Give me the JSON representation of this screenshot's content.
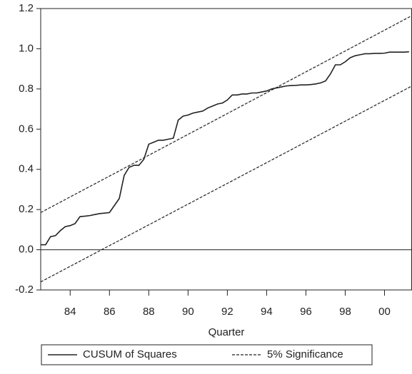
{
  "chart_data": {
    "type": "line",
    "xlabel": "Quarter",
    "xlim": [
      1982.5,
      2001.4
    ],
    "xticks": [
      {
        "value": 1984,
        "label": "84"
      },
      {
        "value": 1986,
        "label": "86"
      },
      {
        "value": 1988,
        "label": "88"
      },
      {
        "value": 1990,
        "label": "90"
      },
      {
        "value": 1992,
        "label": "92"
      },
      {
        "value": 1994,
        "label": "94"
      },
      {
        "value": 1996,
        "label": "96"
      },
      {
        "value": 1998,
        "label": "98"
      },
      {
        "value": 2000,
        "label": "00"
      }
    ],
    "ylim": [
      -0.2,
      1.2
    ],
    "yticks": [
      {
        "value": -0.2,
        "label": "-0.2"
      },
      {
        "value": 0,
        "label": "0.0"
      },
      {
        "value": 0.2,
        "label": "0.2"
      },
      {
        "value": 0.4,
        "label": "0.4"
      },
      {
        "value": 0.6,
        "label": "0.6"
      },
      {
        "value": 0.8,
        "label": "0.8"
      },
      {
        "value": 1,
        "label": "1.0"
      },
      {
        "value": 1.2,
        "label": "1.2"
      }
    ],
    "hline": 0,
    "series": [
      {
        "name": "CUSUM of Squares",
        "color": "#222222",
        "x": [
          1982.5,
          1982.75,
          1983,
          1983.25,
          1983.5,
          1983.75,
          1984,
          1984.25,
          1984.5,
          1984.75,
          1985,
          1985.25,
          1985.5,
          1985.75,
          1986,
          1986.25,
          1986.5,
          1986.75,
          1987,
          1987.25,
          1987.5,
          1987.75,
          1988,
          1988.25,
          1988.5,
          1988.75,
          1989,
          1989.25,
          1989.5,
          1989.75,
          1990,
          1990.25,
          1990.5,
          1990.75,
          1991,
          1991.25,
          1991.5,
          1991.75,
          1992,
          1992.25,
          1992.5,
          1992.75,
          1993,
          1993.25,
          1993.5,
          1993.75,
          1994,
          1994.25,
          1994.5,
          1994.75,
          1995,
          1995.25,
          1995.5,
          1995.75,
          1996,
          1996.25,
          1996.5,
          1996.75,
          1997,
          1997.25,
          1997.5,
          1997.75,
          1998,
          1998.25,
          1998.5,
          1998.75,
          1999,
          1999.25,
          1999.5,
          1999.75,
          2000,
          2000.25,
          2000.5,
          2000.75,
          2001,
          2001.25
        ],
        "values": [
          0.025,
          0.025,
          0.065,
          0.07,
          0.095,
          0.115,
          0.12,
          0.13,
          0.165,
          0.167,
          0.17,
          0.175,
          0.18,
          0.182,
          0.185,
          0.22,
          0.255,
          0.37,
          0.41,
          0.42,
          0.42,
          0.45,
          0.525,
          0.535,
          0.545,
          0.545,
          0.55,
          0.555,
          0.645,
          0.665,
          0.67,
          0.68,
          0.685,
          0.69,
          0.705,
          0.715,
          0.725,
          0.73,
          0.745,
          0.77,
          0.77,
          0.775,
          0.775,
          0.78,
          0.78,
          0.785,
          0.79,
          0.8,
          0.805,
          0.81,
          0.815,
          0.817,
          0.818,
          0.82,
          0.82,
          0.822,
          0.825,
          0.83,
          0.84,
          0.875,
          0.92,
          0.92,
          0.935,
          0.955,
          0.965,
          0.97,
          0.975,
          0.975,
          0.977,
          0.977,
          0.978,
          0.983,
          0.983,
          0.983,
          0.983,
          0.985
        ]
      }
    ],
    "significance": {
      "name": "5% Significance",
      "color": "#222222",
      "x": [
        1982.5,
        2001.4
      ],
      "upper": [
        0.185,
        1.165
      ],
      "lower": [
        -0.16,
        0.815
      ]
    }
  }
}
